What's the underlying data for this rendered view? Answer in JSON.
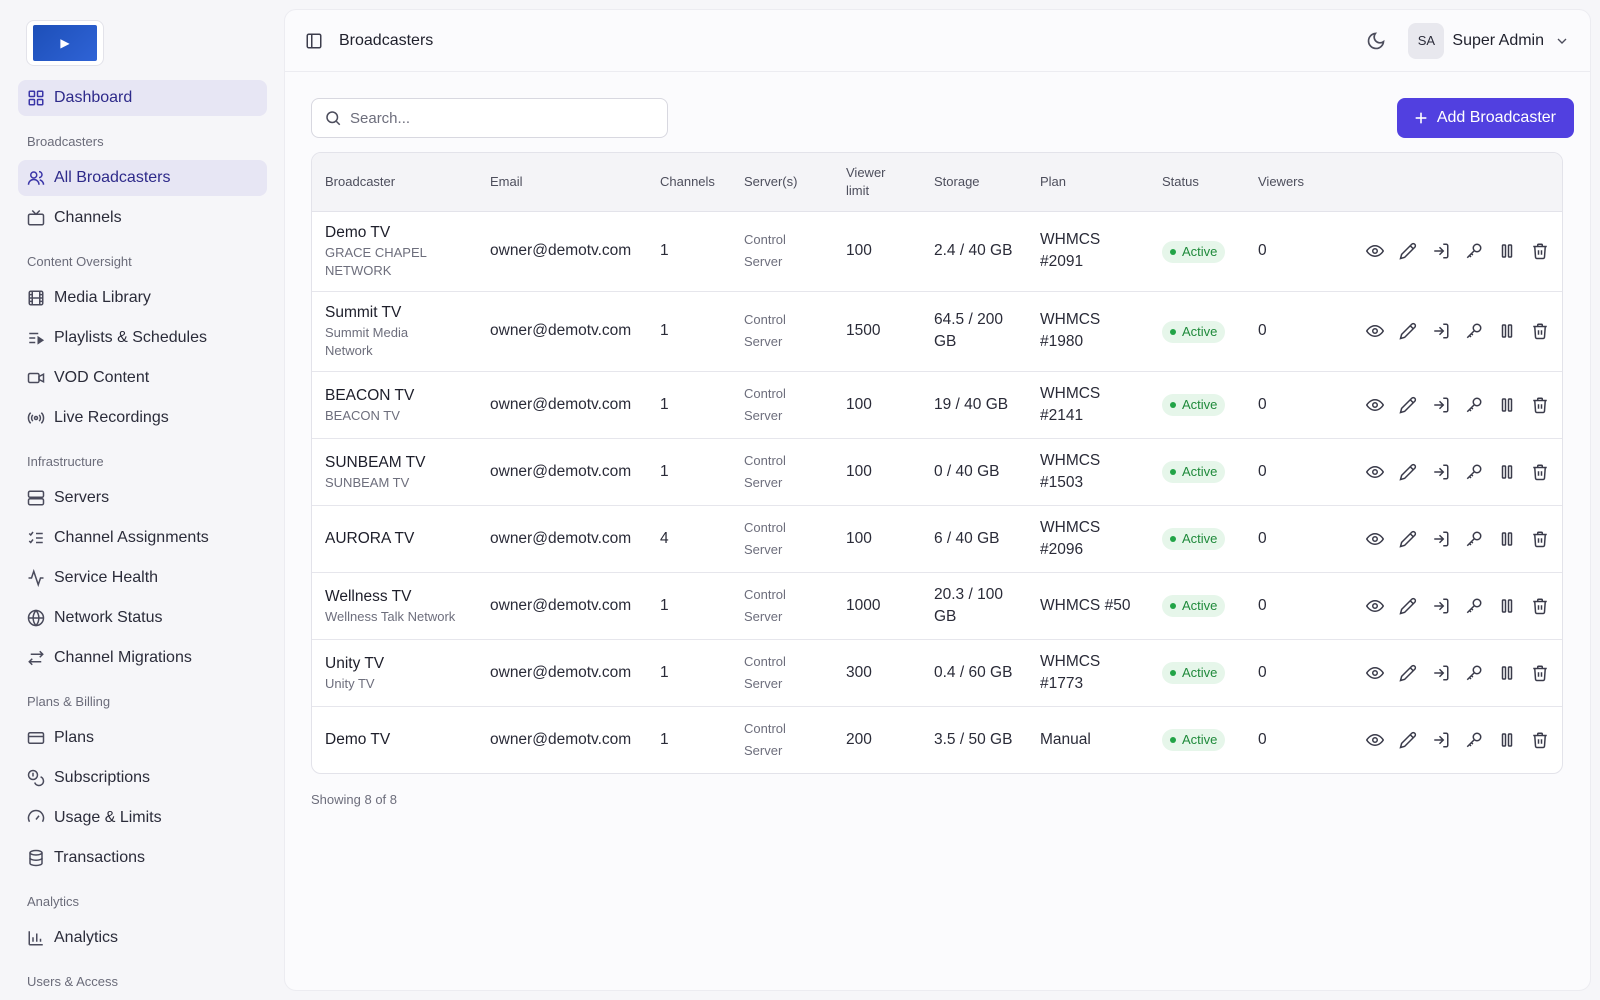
{
  "sidebar": {
    "top": {
      "label": "Dashboard",
      "icon": "grid-icon"
    },
    "sections": [
      {
        "title": "Broadcasters",
        "items": [
          {
            "label": "All Broadcasters",
            "icon": "users-icon",
            "active": true
          },
          {
            "label": "Channels",
            "icon": "tv-icon"
          }
        ]
      },
      {
        "title": "Content Oversight",
        "items": [
          {
            "label": "Media Library",
            "icon": "film-icon"
          },
          {
            "label": "Playlists & Schedules",
            "icon": "list-play-icon"
          },
          {
            "label": "VOD Content",
            "icon": "video-icon"
          },
          {
            "label": "Live Recordings",
            "icon": "radio-icon"
          }
        ]
      },
      {
        "title": "Infrastructure",
        "items": [
          {
            "label": "Servers",
            "icon": "server-icon"
          },
          {
            "label": "Channel Assignments",
            "icon": "list-checks-icon"
          },
          {
            "label": "Service Health",
            "icon": "activity-icon"
          },
          {
            "label": "Network Status",
            "icon": "globe-icon"
          },
          {
            "label": "Channel Migrations",
            "icon": "arrows-swap-icon"
          }
        ]
      },
      {
        "title": "Plans & Billing",
        "items": [
          {
            "label": "Plans",
            "icon": "credit-card-icon"
          },
          {
            "label": "Subscriptions",
            "icon": "coins-icon"
          },
          {
            "label": "Usage & Limits",
            "icon": "gauge-icon"
          },
          {
            "label": "Transactions",
            "icon": "database-icon"
          }
        ]
      },
      {
        "title": "Analytics",
        "items": [
          {
            "label": "Analytics",
            "icon": "bar-chart-icon"
          }
        ]
      },
      {
        "title": "Users & Access",
        "items": []
      }
    ]
  },
  "topbar": {
    "title": "Broadcasters",
    "avatar_initials": "SA",
    "user_name": "Super Admin"
  },
  "search": {
    "placeholder": "Search..."
  },
  "add_button": {
    "label": "Add Broadcaster"
  },
  "table": {
    "headers": {
      "broadcaster": "Broadcaster",
      "email": "Email",
      "channels": "Channels",
      "servers": "Server(s)",
      "viewer_limit_1": "Viewer",
      "viewer_limit_2": "limit",
      "storage": "Storage",
      "plan": "Plan",
      "status": "Status",
      "viewers": "Viewers"
    },
    "rows": [
      {
        "name": "Demo TV",
        "sub1": "GRACE CHAPEL",
        "sub2": "NETWORK",
        "email": "owner@demotv.com",
        "channels": "1",
        "server1": "Control",
        "server2": "Server",
        "viewer_limit": "100",
        "storage1": "2.4 / 40 GB",
        "storage2": "",
        "plan1": "WHMCS",
        "plan2": "#2091",
        "status": "Active",
        "viewers": "0"
      },
      {
        "name": "Summit TV",
        "sub1": "Summit Media",
        "sub2": "Network",
        "email": "owner@demotv.com",
        "channels": "1",
        "server1": "Control",
        "server2": "Server",
        "viewer_limit": "1500",
        "storage1": "64.5 / 200",
        "storage2": "GB",
        "plan1": "WHMCS",
        "plan2": "#1980",
        "status": "Active",
        "viewers": "0"
      },
      {
        "name": "BEACON TV",
        "sub1": "BEACON TV",
        "sub2": "",
        "email": "owner@demotv.com",
        "channels": "1",
        "server1": "Control",
        "server2": "Server",
        "viewer_limit": "100",
        "storage1": "19 / 40 GB",
        "storage2": "",
        "plan1": "WHMCS",
        "plan2": "#2141",
        "status": "Active",
        "viewers": "0"
      },
      {
        "name": "SUNBEAM TV",
        "sub1": "SUNBEAM TV",
        "sub2": "",
        "email": "owner@demotv.com",
        "channels": "1",
        "server1": "Control",
        "server2": "Server",
        "viewer_limit": "100",
        "storage1": "0 / 40 GB",
        "storage2": "",
        "plan1": "WHMCS",
        "plan2": "#1503",
        "status": "Active",
        "viewers": "0"
      },
      {
        "name": "AURORA TV",
        "sub1": "",
        "sub2": "",
        "email": "owner@demotv.com",
        "channels": "4",
        "server1": "Control",
        "server2": "Server",
        "viewer_limit": "100",
        "storage1": "6 / 40 GB",
        "storage2": "",
        "plan1": "WHMCS",
        "plan2": "#2096",
        "status": "Active",
        "viewers": "0"
      },
      {
        "name": "Wellness TV",
        "sub1": "Wellness Talk Network",
        "sub2": "",
        "email": "owner@demotv.com",
        "channels": "1",
        "server1": "Control",
        "server2": "Server",
        "viewer_limit": "1000",
        "storage1": "20.3 / 100",
        "storage2": "GB",
        "plan1": "WHMCS #50",
        "plan2": "",
        "status": "Active",
        "viewers": "0"
      },
      {
        "name": "Unity TV",
        "sub1": "Unity TV",
        "sub2": "",
        "email": "owner@demotv.com",
        "channels": "1",
        "server1": "Control",
        "server2": "Server",
        "viewer_limit": "300",
        "storage1": "0.4 / 60 GB",
        "storage2": "",
        "plan1": "WHMCS",
        "plan2": "#1773",
        "status": "Active",
        "viewers": "0"
      },
      {
        "name": "Demo TV",
        "sub1": "",
        "sub2": "",
        "email": "owner@demotv.com",
        "channels": "1",
        "server1": "Control",
        "server2": "Server",
        "viewer_limit": "200",
        "storage1": "3.5 / 50 GB",
        "storage2": "",
        "plan1": "Manual",
        "plan2": "",
        "status": "Active",
        "viewers": "0"
      }
    ],
    "row_actions": [
      "view-icon",
      "edit-icon",
      "login-as-icon",
      "key-icon",
      "pause-icon",
      "delete-icon"
    ]
  },
  "footer": {
    "count_text": "Showing 8 of 8"
  },
  "colors": {
    "accent": "#5140e0",
    "active_nav_bg": "#e7e6f4",
    "status_active_bg": "#e6f6ea",
    "status_active_text": "#1f8a3b"
  }
}
